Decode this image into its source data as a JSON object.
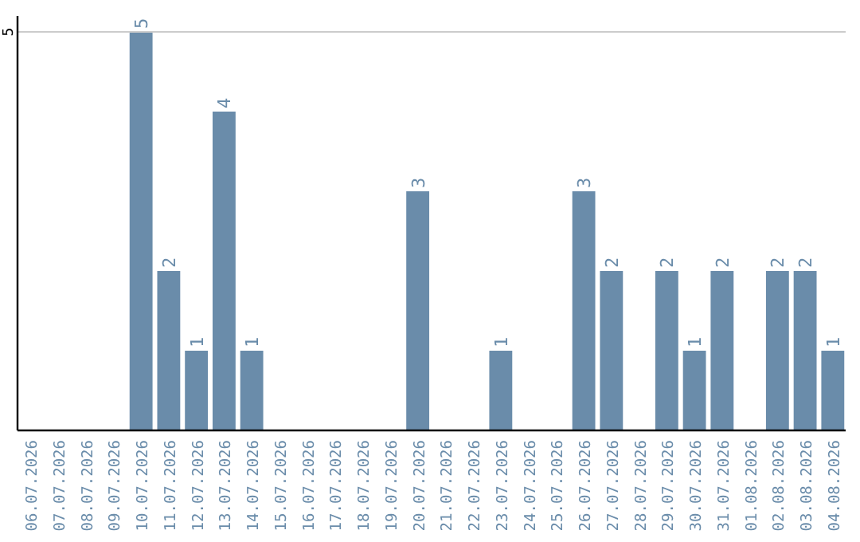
{
  "chart_data": {
    "type": "bar",
    "categories": [
      "06.07.2026",
      "07.07.2026",
      "08.07.2026",
      "09.07.2026",
      "10.07.2026",
      "11.07.2026",
      "12.07.2026",
      "13.07.2026",
      "14.07.2026",
      "15.07.2026",
      "16.07.2026",
      "17.07.2026",
      "18.07.2026",
      "19.07.2026",
      "20.07.2026",
      "21.07.2026",
      "22.07.2026",
      "23.07.2026",
      "24.07.2026",
      "25.07.2026",
      "26.07.2026",
      "27.07.2026",
      "28.07.2026",
      "29.07.2026",
      "30.07.2026",
      "31.07.2026",
      "01.08.2026",
      "02.08.2026",
      "03.08.2026",
      "04.08.2026"
    ],
    "values": [
      null,
      null,
      null,
      null,
      5,
      2,
      1,
      4,
      1,
      null,
      null,
      null,
      null,
      null,
      3,
      null,
      null,
      1,
      null,
      null,
      3,
      2,
      null,
      2,
      1,
      2,
      null,
      2,
      2,
      1
    ],
    "color": "#6a8caa",
    "ylim": [
      0,
      5.2
    ],
    "yticks": [
      5
    ],
    "grid": "y",
    "data_labels": true
  }
}
